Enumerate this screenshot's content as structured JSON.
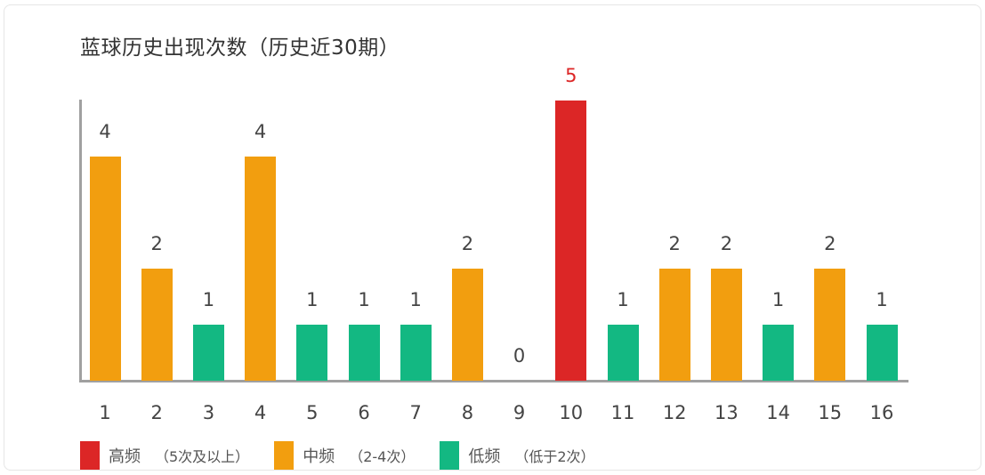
{
  "title": "蓝球历史出现次数（历史近30期）",
  "colors": {
    "high": "#dc2626",
    "mid": "#f29e0f",
    "low": "#13b882",
    "axis": "#a0a0a0",
    "text": "#444444"
  },
  "legend": [
    {
      "key": "high",
      "label": "高频",
      "desc": "（5次及以上）",
      "color": "#dc2626"
    },
    {
      "key": "mid",
      "label": "中频",
      "desc": "（2-4次）",
      "color": "#f29e0f"
    },
    {
      "key": "low",
      "label": "低频",
      "desc": "（低于2次）",
      "color": "#13b882"
    }
  ],
  "chart_data": {
    "type": "bar",
    "title": "蓝球历史出现次数（历史近30期）",
    "xlabel": "",
    "ylabel": "",
    "categories": [
      "1",
      "2",
      "3",
      "4",
      "5",
      "6",
      "7",
      "8",
      "9",
      "10",
      "11",
      "12",
      "13",
      "14",
      "15",
      "16"
    ],
    "values": [
      4,
      2,
      1,
      4,
      1,
      1,
      1,
      2,
      0,
      5,
      1,
      2,
      2,
      1,
      2,
      1
    ],
    "levels": [
      "mid",
      "mid",
      "low",
      "mid",
      "low",
      "low",
      "low",
      "mid",
      "low",
      "high",
      "low",
      "mid",
      "mid",
      "low",
      "mid",
      "low"
    ],
    "ylim": [
      0,
      5
    ],
    "grid": false,
    "data_labels": true,
    "legend_position": "bottom-left",
    "legend": [
      "高频（5次及以上）",
      "中频（2-4次）",
      "低频（低于2次）"
    ]
  }
}
